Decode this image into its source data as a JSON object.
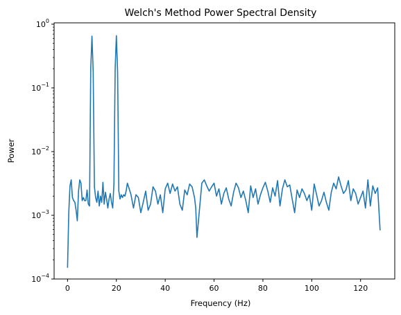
{
  "chart_data": {
    "type": "line",
    "title": "Welch's Method Power Spectral Density",
    "xlabel": "Frequency (Hz)",
    "ylabel": "Power",
    "yscale": "log",
    "xlim": [
      -5.5,
      134
    ],
    "ylim": [
      0.0001,
      1.05
    ],
    "grid": false,
    "xticks": [
      0,
      20,
      40,
      60,
      80,
      100,
      120
    ],
    "xtick_labels": [
      "0",
      "20",
      "40",
      "60",
      "80",
      "100",
      "120"
    ],
    "yticks": [
      0.0001,
      0.001,
      0.01,
      0.1,
      1
    ],
    "ytick_labels": [
      {
        "base": "10",
        "exp": "−4"
      },
      {
        "base": "10",
        "exp": "−3"
      },
      {
        "base": "10",
        "exp": "−2"
      },
      {
        "base": "10",
        "exp": "−1"
      },
      {
        "base": "10",
        "exp": "0"
      }
    ],
    "series": [
      {
        "color": "#1f77b4",
        "x": [
          0,
          0.5,
          1,
          1.5,
          2,
          2.5,
          3,
          3.5,
          4,
          4.5,
          5,
          5.5,
          6,
          6.5,
          7,
          7.5,
          8,
          8.5,
          9,
          9.5,
          10,
          10.5,
          11,
          11.5,
          12,
          12.5,
          13,
          13.5,
          14,
          14.5,
          15,
          15.5,
          16,
          16.5,
          17,
          17.5,
          18,
          18.5,
          19,
          19.5,
          20,
          20.5,
          21,
          21.5,
          22,
          22.5,
          23,
          23.5,
          24,
          24.5,
          25,
          26,
          27,
          28,
          29,
          30,
          31,
          32,
          33,
          34,
          35,
          36,
          37,
          38,
          39,
          40,
          41,
          42,
          43,
          44,
          45,
          46,
          47,
          48,
          49,
          50,
          51,
          52,
          52.5,
          53,
          54,
          55,
          56,
          57,
          58,
          59,
          60,
          61,
          62,
          63,
          64,
          65,
          66,
          67,
          68,
          69,
          70,
          71,
          72,
          73,
          74,
          75,
          76,
          77,
          78,
          79,
          80,
          81,
          82,
          83,
          84,
          85,
          86,
          87,
          88,
          89,
          90,
          91,
          92,
          93,
          94,
          95,
          96,
          97,
          98,
          99,
          100,
          101,
          102,
          103,
          104,
          105,
          106,
          107,
          108,
          109,
          110,
          111,
          112,
          113,
          114,
          115,
          116,
          117,
          118,
          119,
          120,
          121,
          122,
          123,
          124,
          125,
          126,
          127,
          128
        ],
        "y": [
          0.00015,
          0.0011,
          0.0029,
          0.0036,
          0.0019,
          0.0017,
          0.0016,
          0.0012,
          0.00082,
          0.0024,
          0.0036,
          0.0032,
          0.0017,
          0.0019,
          0.0017,
          0.0017,
          0.0025,
          0.0015,
          0.0014,
          0.2,
          0.65,
          0.18,
          0.0028,
          0.0019,
          0.0016,
          0.0024,
          0.0014,
          0.002,
          0.0016,
          0.0033,
          0.0015,
          0.0023,
          0.0018,
          0.0013,
          0.0018,
          0.0022,
          0.0016,
          0.0013,
          0.0031,
          0.2,
          0.66,
          0.18,
          0.0024,
          0.0018,
          0.0021,
          0.0019,
          0.0021,
          0.002,
          0.0024,
          0.0032,
          0.0028,
          0.0021,
          0.0013,
          0.0021,
          0.0019,
          0.0011,
          0.0016,
          0.0024,
          0.0012,
          0.0015,
          0.0028,
          0.0024,
          0.0015,
          0.0021,
          0.0011,
          0.0026,
          0.0032,
          0.0022,
          0.0031,
          0.0024,
          0.0028,
          0.0015,
          0.0012,
          0.0025,
          0.0021,
          0.0031,
          0.0028,
          0.0019,
          0.0013,
          0.00045,
          0.0012,
          0.0032,
          0.0036,
          0.0029,
          0.0024,
          0.0028,
          0.0032,
          0.002,
          0.0026,
          0.0015,
          0.0022,
          0.0027,
          0.0018,
          0.0014,
          0.0023,
          0.0032,
          0.0027,
          0.0019,
          0.0024,
          0.0017,
          0.0011,
          0.0029,
          0.0019,
          0.0026,
          0.0015,
          0.0021,
          0.0027,
          0.0033,
          0.0024,
          0.0016,
          0.0027,
          0.002,
          0.0035,
          0.0014,
          0.0026,
          0.0036,
          0.0028,
          0.003,
          0.0018,
          0.0011,
          0.0025,
          0.0019,
          0.0026,
          0.0022,
          0.0017,
          0.0021,
          0.0012,
          0.0031,
          0.0021,
          0.0014,
          0.0017,
          0.0023,
          0.0016,
          0.0012,
          0.0023,
          0.0032,
          0.0026,
          0.004,
          0.0029,
          0.0022,
          0.0025,
          0.0035,
          0.0017,
          0.0026,
          0.0022,
          0.0015,
          0.0019,
          0.0024,
          0.0013,
          0.0036,
          0.0014,
          0.0029,
          0.0022,
          0.0027,
          0.00058
        ]
      }
    ]
  }
}
